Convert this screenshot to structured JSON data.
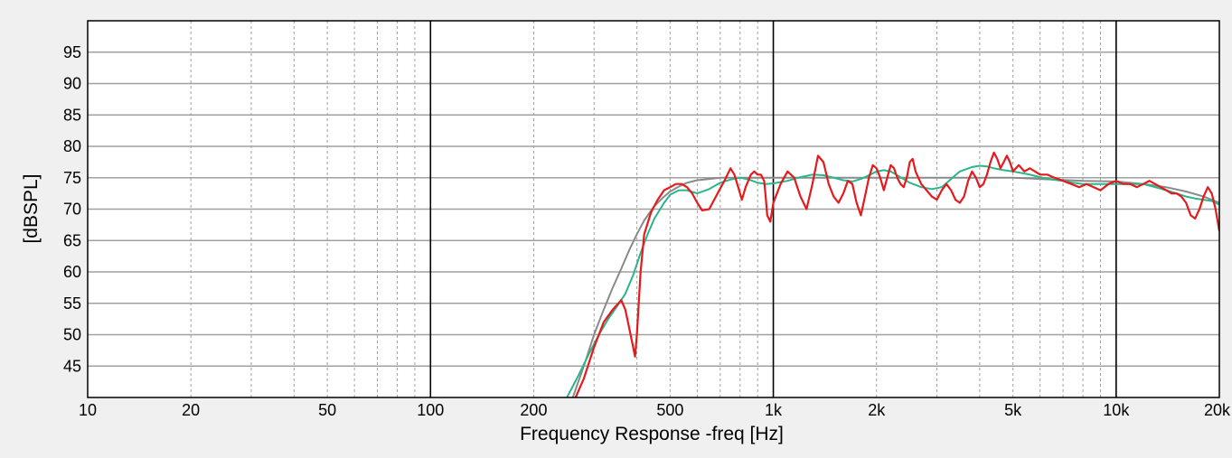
{
  "chart_data": {
    "type": "line",
    "title": "",
    "xlabel": "Frequency Response -freq [Hz]",
    "ylabel": "[dBSPL]",
    "x_scale": "log",
    "xlim": [
      10,
      20000
    ],
    "ylim": [
      40,
      100
    ],
    "grid": true,
    "x_ticks": [
      10,
      20,
      50,
      100,
      200,
      500,
      1000,
      2000,
      5000,
      10000,
      20000
    ],
    "x_tick_labels": [
      "10",
      "20",
      "50",
      "100",
      "200",
      "500",
      "1k",
      "2k",
      "5k",
      "10k",
      "20k"
    ],
    "y_ticks": [
      45,
      50,
      55,
      60,
      65,
      70,
      75,
      80,
      85,
      90,
      95
    ],
    "y_tick_labels": [
      "45",
      "50",
      "55",
      "60",
      "65",
      "70",
      "75",
      "80",
      "85",
      "90",
      "95"
    ],
    "colors": {
      "raw": "#e41a1c",
      "smoothed": "#2bb58c",
      "target": "#8a8a8a",
      "grid": "#a0a0a0",
      "decade_grid": "#000000"
    },
    "series": [
      {
        "key": "raw",
        "x": [
          265,
          280,
          300,
          320,
          340,
          360,
          370,
          380,
          390,
          395,
          400,
          410,
          420,
          440,
          460,
          480,
          500,
          520,
          540,
          560,
          580,
          600,
          620,
          650,
          680,
          720,
          750,
          770,
          790,
          810,
          830,
          860,
          880,
          900,
          920,
          940,
          950,
          960,
          980,
          1000,
          1050,
          1100,
          1150,
          1200,
          1250,
          1300,
          1350,
          1400,
          1450,
          1500,
          1550,
          1600,
          1650,
          1700,
          1750,
          1800,
          1850,
          1900,
          1950,
          2000,
          2050,
          2100,
          2150,
          2200,
          2250,
          2300,
          2350,
          2400,
          2450,
          2500,
          2550,
          2600,
          2700,
          2800,
          2900,
          3000,
          3100,
          3200,
          3300,
          3400,
          3500,
          3600,
          3700,
          3800,
          3900,
          4000,
          4100,
          4200,
          4300,
          4400,
          4500,
          4600,
          4700,
          4800,
          4900,
          5000,
          5200,
          5400,
          5600,
          5800,
          6000,
          6300,
          6600,
          7000,
          7400,
          7800,
          8200,
          8600,
          9000,
          9500,
          10000,
          10500,
          11000,
          11500,
          12000,
          12500,
          13000,
          13500,
          14000,
          14500,
          15000,
          15500,
          16000,
          16500,
          17000,
          17500,
          18000,
          18500,
          19000,
          19500,
          20000
        ],
        "values": [
          40,
          43,
          48,
          52,
          54,
          55.5,
          54,
          51,
          48,
          46.5,
          50,
          60,
          66,
          69.5,
          71.5,
          73,
          73.5,
          74,
          74,
          73.5,
          72.5,
          71,
          69.8,
          70,
          72,
          74.5,
          76.5,
          75.5,
          73.5,
          71.5,
          73.5,
          75.5,
          76,
          75.5,
          75.5,
          74.5,
          72,
          69,
          68,
          71,
          74,
          76,
          75,
          72,
          70,
          74,
          78.5,
          77.5,
          74,
          72,
          71,
          72.5,
          74.5,
          74,
          71,
          69,
          72,
          75,
          77,
          76.5,
          75,
          73,
          75,
          77,
          76.5,
          75,
          74,
          73.5,
          75,
          77.5,
          78,
          76,
          74,
          73,
          72,
          71.5,
          73,
          74,
          73,
          71.5,
          71,
          72,
          74.5,
          76,
          75,
          73.5,
          74,
          75.5,
          77.5,
          79,
          78,
          76.5,
          77.5,
          78.5,
          77.5,
          76,
          77,
          76,
          76.5,
          76,
          75.5,
          75.5,
          75,
          74.5,
          74,
          73.5,
          74,
          73.5,
          73,
          74,
          74.5,
          74,
          74,
          73.5,
          74,
          74.5,
          74,
          73.5,
          73,
          72.5,
          72.5,
          72,
          71,
          69,
          68.5,
          70,
          72,
          73.5,
          72.5,
          70,
          66.5
        ]
      },
      {
        "key": "smoothed",
        "x": [
          250,
          270,
          290,
          310,
          330,
          350,
          370,
          390,
          410,
          430,
          450,
          480,
          500,
          530,
          560,
          600,
          650,
          700,
          750,
          800,
          850,
          900,
          950,
          1000,
          1100,
          1200,
          1300,
          1400,
          1500,
          1600,
          1700,
          1800,
          1900,
          2000,
          2100,
          2200,
          2300,
          2500,
          2700,
          2900,
          3100,
          3300,
          3500,
          3800,
          4000,
          4200,
          4400,
          4700,
          5000,
          5500,
          6000,
          6500,
          7000,
          7500,
          8000,
          9000,
          10000,
          11000,
          12000,
          13000,
          14000,
          15000,
          16000,
          17000,
          18000,
          19000,
          20000
        ],
        "values": [
          40,
          43.5,
          47,
          50,
          52.5,
          54.5,
          56.5,
          59.5,
          63,
          66,
          68.5,
          71,
          72.3,
          73,
          73,
          72.5,
          73.2,
          74.2,
          74.7,
          75,
          74.7,
          74.2,
          74,
          74.1,
          74.5,
          75.1,
          75.5,
          75.4,
          75,
          74.6,
          74.4,
          74.8,
          75.4,
          76,
          76.2,
          76,
          75.4,
          74.2,
          73.5,
          73.2,
          73.5,
          74.8,
          76,
          76.7,
          76.9,
          76.8,
          76.5,
          76.2,
          76,
          75.6,
          75.1,
          74.7,
          74.5,
          74.2,
          74,
          74,
          74,
          74,
          74,
          73.5,
          73,
          72.5,
          72,
          71.7,
          71.5,
          71.3,
          70.7
        ]
      },
      {
        "key": "target",
        "x": [
          260,
          280,
          300,
          320,
          340,
          360,
          380,
          400,
          420,
          450,
          480,
          500,
          530,
          560,
          600,
          650,
          700,
          800,
          900,
          1000,
          2000,
          3000,
          4000,
          5000,
          6000,
          8000,
          10000,
          12000,
          14000,
          16000,
          18000,
          20000
        ],
        "values": [
          40,
          45,
          50,
          54,
          57.5,
          60.5,
          63.5,
          66,
          68.2,
          70.5,
          72,
          72.8,
          73.6,
          74.2,
          74.6,
          74.8,
          75,
          75,
          75,
          75,
          75,
          75,
          75,
          75,
          74.8,
          74.5,
          74.4,
          74,
          73.5,
          72.8,
          72,
          71
        ]
      }
    ]
  }
}
